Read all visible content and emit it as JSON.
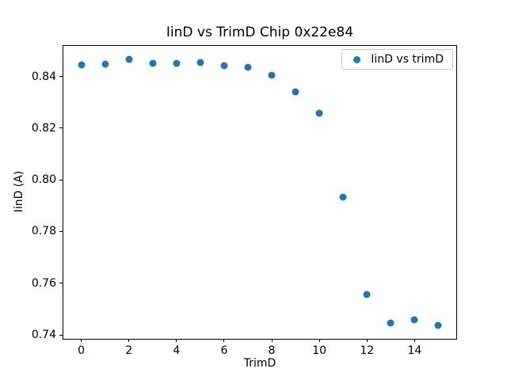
{
  "figure": {
    "background": "#ffffff",
    "text_color": "#000000",
    "axes_edge_color": "#000000"
  },
  "chart_data": {
    "type": "scatter",
    "title": "IinD vs TrimD Chip 0x22e84",
    "xlabel": "TrimD",
    "ylabel": "IinD (A)",
    "grid": false,
    "legend": {
      "position": "upper right",
      "entries": [
        {
          "label": "IinD vs trimD",
          "marker": "circle",
          "color": "#1f77b4"
        }
      ]
    },
    "xlim": [
      -0.75,
      15.75
    ],
    "ylim": [
      0.7385,
      0.8518
    ],
    "xticks": {
      "values": [
        0,
        2,
        4,
        6,
        8,
        10,
        12,
        14
      ],
      "labels": [
        "0",
        "2",
        "4",
        "6",
        "8",
        "10",
        "12",
        "14"
      ]
    },
    "yticks": {
      "values": [
        0.74,
        0.76,
        0.78,
        0.8,
        0.82,
        0.84
      ],
      "labels": [
        "0.74",
        "0.76",
        "0.78",
        "0.80",
        "0.82",
        "0.84"
      ]
    },
    "series": [
      {
        "name": "IinD vs trimD",
        "color": "#1f77b4",
        "marker": "circle",
        "x": [
          0,
          1,
          2,
          3,
          4,
          5,
          6,
          7,
          8,
          9,
          10,
          11,
          12,
          13,
          14,
          15
        ],
        "y": [
          0.8446,
          0.8449,
          0.8467,
          0.8451,
          0.8452,
          0.8454,
          0.8442,
          0.8436,
          0.8405,
          0.8341,
          0.8257,
          0.7932,
          0.7555,
          0.7446,
          0.7458,
          0.7438
        ]
      }
    ]
  }
}
